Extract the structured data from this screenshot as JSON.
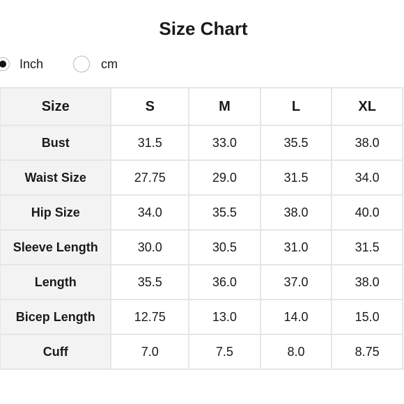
{
  "title": "Size Chart",
  "units": {
    "options": [
      {
        "label": "Inch",
        "selected": true
      },
      {
        "label": "cm",
        "selected": false
      }
    ]
  },
  "table": {
    "header": [
      "Size",
      "S",
      "M",
      "L",
      "XL"
    ],
    "rows": [
      {
        "label": "Bust",
        "values": [
          "31.5",
          "33.0",
          "35.5",
          "38.0"
        ]
      },
      {
        "label": "Waist Size",
        "values": [
          "27.75",
          "29.0",
          "31.5",
          "34.0"
        ]
      },
      {
        "label": "Hip Size",
        "values": [
          "34.0",
          "35.5",
          "38.0",
          "40.0"
        ]
      },
      {
        "label": "Sleeve Length",
        "values": [
          "30.0",
          "30.5",
          "31.0",
          "31.5"
        ]
      },
      {
        "label": "Length",
        "values": [
          "35.5",
          "36.0",
          "37.0",
          "38.0"
        ]
      },
      {
        "label": "Bicep Length",
        "values": [
          "12.75",
          "13.0",
          "14.0",
          "15.0"
        ]
      },
      {
        "label": "Cuff",
        "values": [
          "7.0",
          "7.5",
          "8.0",
          "8.75"
        ]
      }
    ]
  }
}
